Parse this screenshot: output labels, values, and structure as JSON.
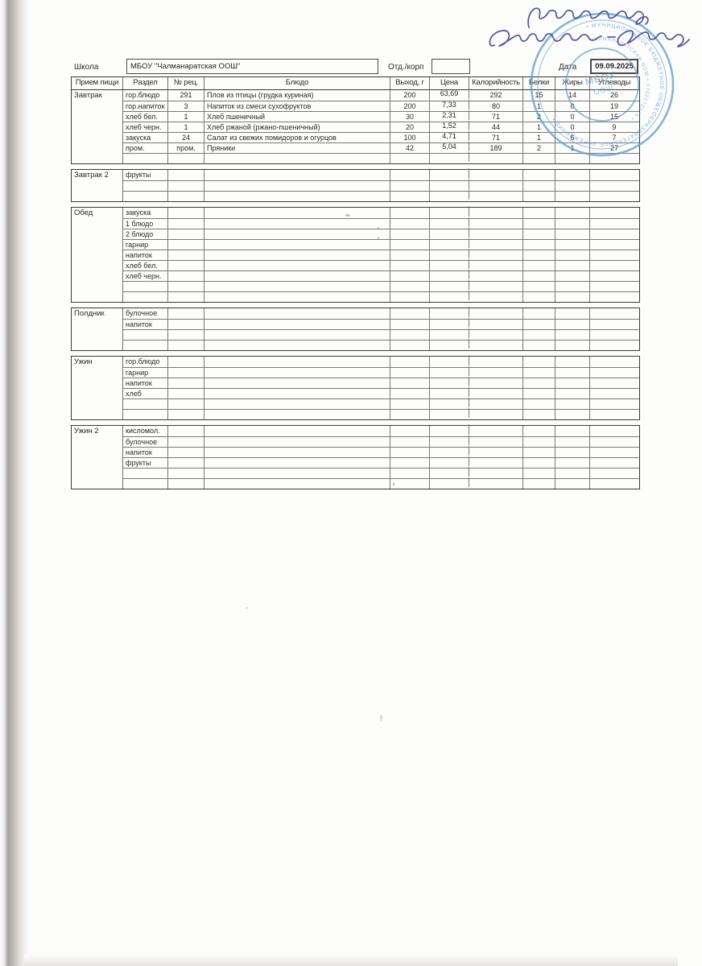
{
  "form": {
    "school_label": "Школа",
    "school_value": "МБОУ \"Чалманаратская ООШ\"",
    "dept_label": "Отд./корп",
    "dept_value": "",
    "date_label": "Дата",
    "date_value": "09.09.2025"
  },
  "table": {
    "columns": [
      "Прием пищи",
      "Раздел",
      "№ рец.",
      "Блюдо",
      "Выход, г",
      "Цена",
      "Калорийность",
      "Белки",
      "Жиры",
      "Углеводы"
    ],
    "sections": [
      {
        "meal": "Завтрак",
        "rows": [
          {
            "razdel": "гор.блюдо",
            "rec": "291",
            "dish": "Плов из птицы (грудка куриная)",
            "out": "200",
            "price": "63,69",
            "kcal": "292",
            "prot": "15",
            "fat": "14",
            "carb": "26"
          },
          {
            "razdel": "гор.напиток",
            "rec": "3",
            "dish": "Напиток из смеси сухофруктов",
            "out": "200",
            "price": "7,33",
            "kcal": "80",
            "prot": "1",
            "fat": "0",
            "carb": "19"
          },
          {
            "razdel": "хлеб бел.",
            "rec": "1",
            "dish": "Хлеб пшеничный",
            "out": "30",
            "price": "2,31",
            "kcal": "71",
            "prot": "2",
            "fat": "0",
            "carb": "15"
          },
          {
            "razdel": "хлеб черн.",
            "rec": "1",
            "dish": "Хлеб ржаной (ржано-пшеничный)",
            "out": "20",
            "price": "1,52",
            "kcal": "44",
            "prot": "1",
            "fat": "0",
            "carb": "9"
          },
          {
            "razdel": "закуска",
            "rec": "24",
            "dish": "Салат из свежих помидоров и огурцов",
            "out": "100",
            "price": "4,71",
            "kcal": "71",
            "prot": "1",
            "fat": "6",
            "carb": "7"
          },
          {
            "razdel": "пром.",
            "rec": "пром.",
            "dish": "Пряники",
            "out": "42",
            "price": "5,04",
            "kcal": "189",
            "prot": "2",
            "fat": "1",
            "carb": "27"
          },
          {
            "razdel": "",
            "rec": "",
            "dish": "",
            "out": "",
            "price": "",
            "kcal": "",
            "prot": "",
            "fat": "",
            "carb": ""
          }
        ]
      },
      {
        "meal": "Завтрак 2",
        "rows": [
          {
            "razdel": "фрукты",
            "rec": "",
            "dish": "",
            "out": "",
            "price": "",
            "kcal": "",
            "prot": "",
            "fat": "",
            "carb": ""
          },
          {
            "razdel": "",
            "rec": "",
            "dish": "",
            "out": "",
            "price": "",
            "kcal": "",
            "prot": "",
            "fat": "",
            "carb": ""
          },
          {
            "razdel": "",
            "rec": "",
            "dish": "",
            "out": "",
            "price": "",
            "kcal": "",
            "prot": "",
            "fat": "",
            "carb": ""
          }
        ]
      },
      {
        "meal": "Обед",
        "rows": [
          {
            "razdel": "закуска",
            "rec": "",
            "dish": "",
            "out": "",
            "price": "",
            "kcal": "",
            "prot": "",
            "fat": "",
            "carb": ""
          },
          {
            "razdel": "1 блюдо",
            "rec": "",
            "dish": "",
            "out": "",
            "price": "",
            "kcal": "",
            "prot": "",
            "fat": "",
            "carb": ""
          },
          {
            "razdel": "2 блюдо",
            "rec": "",
            "dish": "",
            "out": "",
            "price": "",
            "kcal": "",
            "prot": "",
            "fat": "",
            "carb": ""
          },
          {
            "razdel": "гарнир",
            "rec": "",
            "dish": "",
            "out": "",
            "price": "",
            "kcal": "",
            "prot": "",
            "fat": "",
            "carb": ""
          },
          {
            "razdel": "напиток",
            "rec": "",
            "dish": "",
            "out": "",
            "price": "",
            "kcal": "",
            "prot": "",
            "fat": "",
            "carb": ""
          },
          {
            "razdel": "хлеб бел.",
            "rec": "",
            "dish": "",
            "out": "",
            "price": "",
            "kcal": "",
            "prot": "",
            "fat": "",
            "carb": ""
          },
          {
            "razdel": "хлеб черн.",
            "rec": "",
            "dish": "",
            "out": "",
            "price": "",
            "kcal": "",
            "prot": "",
            "fat": "",
            "carb": ""
          },
          {
            "razdel": "",
            "rec": "",
            "dish": "",
            "out": "",
            "price": "",
            "kcal": "",
            "prot": "",
            "fat": "",
            "carb": ""
          },
          {
            "razdel": "",
            "rec": "",
            "dish": "",
            "out": "",
            "price": "",
            "kcal": "",
            "prot": "",
            "fat": "",
            "carb": ""
          }
        ]
      },
      {
        "meal": "Полдник",
        "rows": [
          {
            "razdel": "булочное",
            "rec": "",
            "dish": "",
            "out": "",
            "price": "",
            "kcal": "",
            "prot": "",
            "fat": "",
            "carb": ""
          },
          {
            "razdel": "напиток",
            "rec": "",
            "dish": "",
            "out": "",
            "price": "",
            "kcal": "",
            "prot": "",
            "fat": "",
            "carb": ""
          },
          {
            "razdel": "",
            "rec": "",
            "dish": "",
            "out": "",
            "price": "",
            "kcal": "",
            "prot": "",
            "fat": "",
            "carb": ""
          },
          {
            "razdel": "",
            "rec": "",
            "dish": "",
            "out": "",
            "price": "",
            "kcal": "",
            "prot": "",
            "fat": "",
            "carb": ""
          }
        ]
      },
      {
        "meal": "Ужин",
        "rows": [
          {
            "razdel": "гор.блюдо",
            "rec": "",
            "dish": "",
            "out": "",
            "price": "",
            "kcal": "",
            "prot": "",
            "fat": "",
            "carb": ""
          },
          {
            "razdel": "гарнир",
            "rec": "",
            "dish": "",
            "out": "",
            "price": "",
            "kcal": "",
            "prot": "",
            "fat": "",
            "carb": ""
          },
          {
            "razdel": "напиток",
            "rec": "",
            "dish": "",
            "out": "",
            "price": "",
            "kcal": "",
            "prot": "",
            "fat": "",
            "carb": ""
          },
          {
            "razdel": "хлеб",
            "rec": "",
            "dish": "",
            "out": "",
            "price": "",
            "kcal": "",
            "prot": "",
            "fat": "",
            "carb": ""
          },
          {
            "razdel": "",
            "rec": "",
            "dish": "",
            "out": "",
            "price": "",
            "kcal": "",
            "prot": "",
            "fat": "",
            "carb": ""
          },
          {
            "razdel": "",
            "rec": "",
            "dish": "",
            "out": "",
            "price": "",
            "kcal": "",
            "prot": "",
            "fat": "",
            "carb": ""
          }
        ]
      },
      {
        "meal": "Ужин 2",
        "rows": [
          {
            "razdel": "кисломол.",
            "rec": "",
            "dish": "",
            "out": "",
            "price": "",
            "kcal": "",
            "prot": "",
            "fat": "",
            "carb": ""
          },
          {
            "razdel": "булочное",
            "rec": "",
            "dish": "",
            "out": "",
            "price": "",
            "kcal": "",
            "prot": "",
            "fat": "",
            "carb": ""
          },
          {
            "razdel": "напиток",
            "rec": "",
            "dish": "",
            "out": "",
            "price": "",
            "kcal": "",
            "prot": "",
            "fat": "",
            "carb": ""
          },
          {
            "razdel": "фрукты",
            "rec": "",
            "dish": "",
            "out": "",
            "price": "",
            "kcal": "",
            "prot": "",
            "fat": "",
            "carb": ""
          },
          {
            "razdel": "",
            "rec": "",
            "dish": "",
            "out": "",
            "price": "",
            "kcal": "",
            "prot": "",
            "fat": "",
            "carb": ""
          },
          {
            "razdel": "",
            "rec": "",
            "dish": "",
            "out": "",
            "price": "",
            "kcal": "",
            "prot": "",
            "fat": "",
            "carb": ""
          }
        ]
      }
    ]
  },
  "annotations": {
    "signature_ink_color": "#4a4da0",
    "stamp_color": "#5f9dd3",
    "stamp_ring_text_outer": "• МУНИЦИПАЛЬНОЕ БЮДЖЕТНОЕ ОБЩЕОБРАЗОВАТЕЛЬНОЕ УЧРЕЖДЕНИЕ •",
    "stamp_ring_text_inner": "ЧАЛМАНАРАТСКАЯ ООШ • 1702272216 •",
    "stamp_center_line1": "МБОУ",
    "stamp_center_line2": "ООШ"
  }
}
